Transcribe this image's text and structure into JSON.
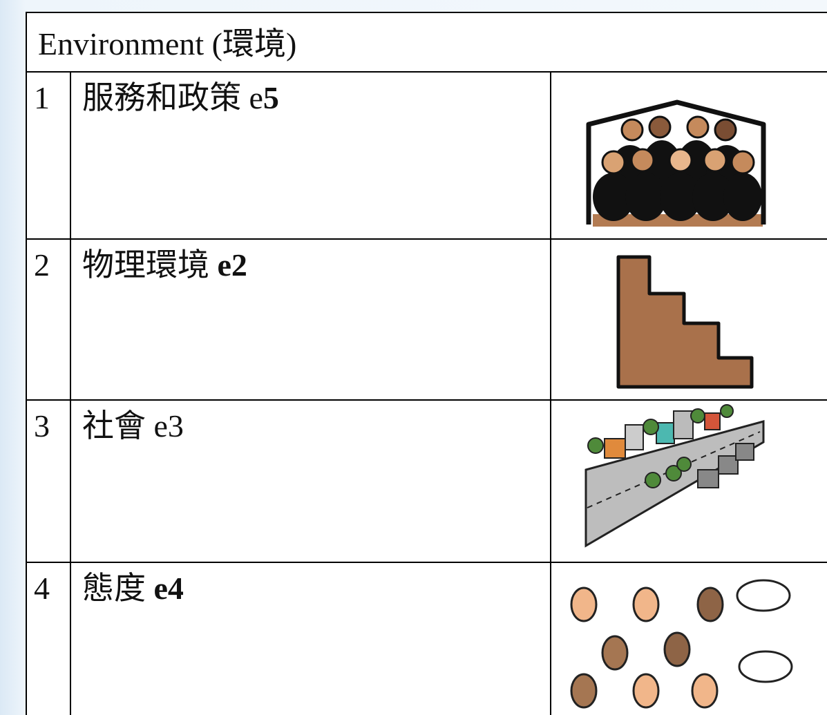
{
  "table": {
    "header": "Environment (環境)",
    "rows": [
      {
        "number": "1",
        "label": "服務和政策",
        "code": [
          {
            "text": "e",
            "bold": false
          },
          {
            "text": "5",
            "bold": true
          }
        ]
      },
      {
        "number": "2",
        "label": "物理環境",
        "code": [
          {
            "text": "e2",
            "bold": true
          }
        ]
      },
      {
        "number": "3",
        "label": "社會",
        "code": [
          {
            "text": "e3",
            "bold": false
          }
        ]
      },
      {
        "number": "4",
        "label": "態度",
        "code": [
          {
            "text": "e4",
            "bold": true
          }
        ]
      }
    ]
  }
}
